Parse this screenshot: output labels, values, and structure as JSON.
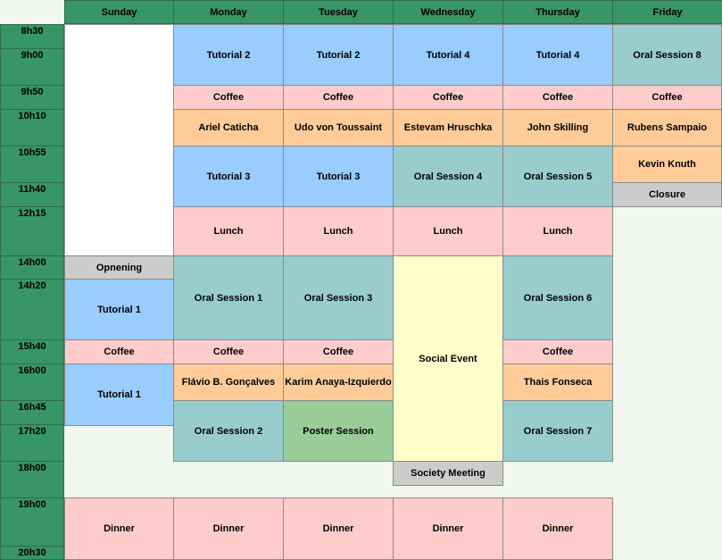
{
  "days": [
    "Sunday",
    "Monday",
    "Tuesday",
    "Wednesday",
    "Thursday",
    "Friday"
  ],
  "times": [
    {
      "label": "8h30"
    },
    {
      "label": "9h00"
    },
    {
      "label": "9h50"
    },
    {
      "label": "10h10"
    },
    {
      "label": "10h55"
    },
    {
      "label": "11h40"
    },
    {
      "label": "12h15"
    },
    {
      "label": "14h00"
    },
    {
      "label": "14h20"
    },
    {
      "label": "15h40"
    },
    {
      "label": "16h00"
    },
    {
      "label": "16h45"
    },
    {
      "label": "17h20"
    },
    {
      "label": "18h00"
    },
    {
      "label": "19h00"
    },
    {
      "label": "20h30"
    }
  ],
  "events": [
    {
      "day": 0,
      "label": "Opnening",
      "kind": "grey"
    },
    {
      "day": 0,
      "label": "Tutorial 1",
      "kind": "tutorial"
    },
    {
      "day": 0,
      "label": "Coffee",
      "kind": "coffee"
    },
    {
      "day": 0,
      "label": "Tutorial 1",
      "kind": "tutorial"
    },
    {
      "day": 0,
      "label": "Dinner",
      "kind": "dinner"
    },
    {
      "day": 1,
      "label": "Tutorial 2",
      "kind": "tutorial"
    },
    {
      "day": 1,
      "label": "Coffee",
      "kind": "coffee"
    },
    {
      "day": 1,
      "label": "Ariel Caticha",
      "kind": "talk"
    },
    {
      "day": 1,
      "label": "Tutorial 3",
      "kind": "tutorial"
    },
    {
      "day": 1,
      "label": "Lunch",
      "kind": "lunch"
    },
    {
      "day": 1,
      "label": "Oral Session 1",
      "kind": "oral"
    },
    {
      "day": 1,
      "label": "Coffee",
      "kind": "coffee"
    },
    {
      "day": 1,
      "label": "Flávio B. Gonçalves",
      "kind": "talk"
    },
    {
      "day": 1,
      "label": "Oral Session 2",
      "kind": "oral"
    },
    {
      "day": 1,
      "label": "Dinner",
      "kind": "dinner"
    },
    {
      "day": 2,
      "label": "Tutorial 2",
      "kind": "tutorial"
    },
    {
      "day": 2,
      "label": "Coffee",
      "kind": "coffee"
    },
    {
      "day": 2,
      "label": "Udo  von Toussaint",
      "kind": "talk"
    },
    {
      "day": 2,
      "label": "Tutorial 3",
      "kind": "tutorial"
    },
    {
      "day": 2,
      "label": "Lunch",
      "kind": "lunch"
    },
    {
      "day": 2,
      "label": "Oral Session 3",
      "kind": "oral"
    },
    {
      "day": 2,
      "label": "Coffee",
      "kind": "coffee"
    },
    {
      "day": 2,
      "label": "Karim Anaya-Izquierdo",
      "kind": "talk"
    },
    {
      "day": 2,
      "label": "Poster Session",
      "kind": "poster"
    },
    {
      "day": 2,
      "label": "Dinner",
      "kind": "dinner"
    },
    {
      "day": 3,
      "label": "Tutorial 4",
      "kind": "tutorial"
    },
    {
      "day": 3,
      "label": "Coffee",
      "kind": "coffee"
    },
    {
      "day": 3,
      "label": "Estevam Hruschka",
      "kind": "talk"
    },
    {
      "day": 3,
      "label": "Oral Session 4",
      "kind": "oral"
    },
    {
      "day": 3,
      "label": "Lunch",
      "kind": "lunch"
    },
    {
      "day": 3,
      "label": "Social Event",
      "kind": "social"
    },
    {
      "day": 3,
      "label": "Society Meeting",
      "kind": "grey"
    },
    {
      "day": 3,
      "label": "Dinner",
      "kind": "dinner"
    },
    {
      "day": 4,
      "label": "Tutorial 4",
      "kind": "tutorial"
    },
    {
      "day": 4,
      "label": "Coffee",
      "kind": "coffee"
    },
    {
      "day": 4,
      "label": "John Skilling",
      "kind": "talk"
    },
    {
      "day": 4,
      "label": "Oral Session 5",
      "kind": "oral"
    },
    {
      "day": 4,
      "label": "Lunch",
      "kind": "lunch"
    },
    {
      "day": 4,
      "label": "Oral Session 6",
      "kind": "oral"
    },
    {
      "day": 4,
      "label": "Coffee",
      "kind": "coffee"
    },
    {
      "day": 4,
      "label": "Thais Fonseca",
      "kind": "talk"
    },
    {
      "day": 4,
      "label": "Oral Session 7",
      "kind": "oral"
    },
    {
      "day": 4,
      "label": "Dinner",
      "kind": "dinner"
    },
    {
      "day": 5,
      "label": "Oral Session 8",
      "kind": "oral"
    },
    {
      "day": 5,
      "label": "Coffee",
      "kind": "coffee"
    },
    {
      "day": 5,
      "label": "Rubens Sampaio",
      "kind": "talk"
    },
    {
      "day": 5,
      "label": "Kevin Knuth",
      "kind": "talk"
    },
    {
      "day": 5,
      "label": "Closure",
      "kind": "grey"
    }
  ],
  "colors": {
    "header": "#389565",
    "tutorial": "#99ccff",
    "coffee": "#ffcccc",
    "talk": "#ffcc99",
    "oral": "#99cccc",
    "grey": "#cccccc",
    "social": "#ffffcc",
    "poster": "#99cc99"
  }
}
